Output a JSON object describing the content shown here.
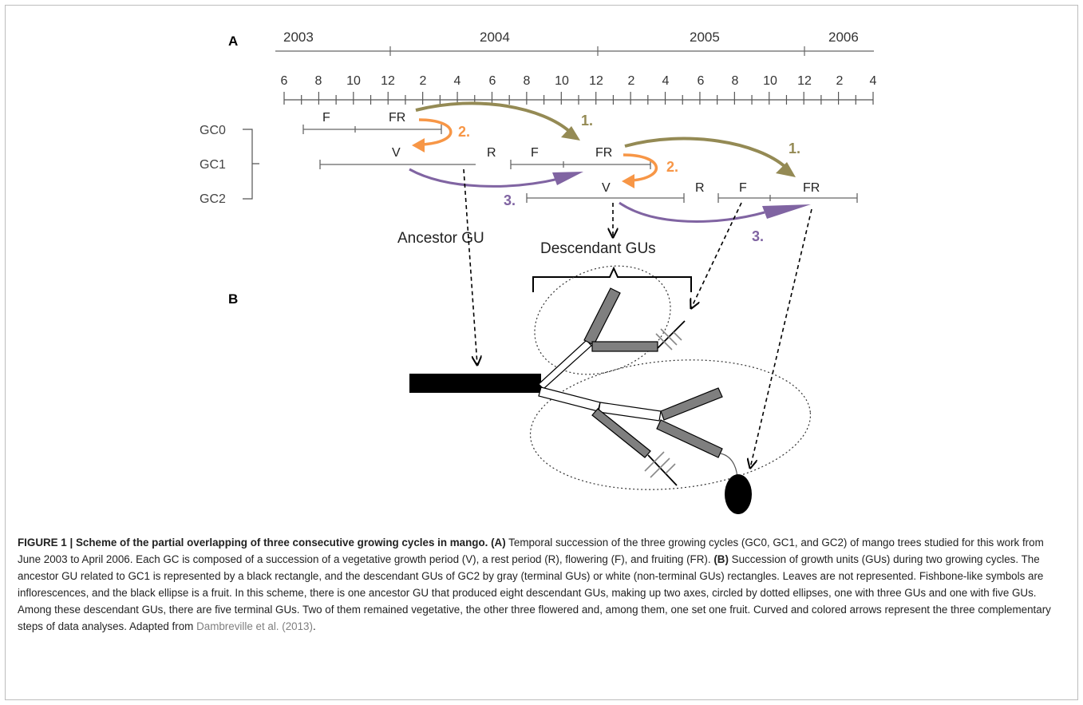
{
  "panels": {
    "a": "A",
    "b": "B"
  },
  "timeline": {
    "years": [
      "2003",
      "2004",
      "2005",
      "2006"
    ],
    "months": [
      "6",
      "8",
      "10",
      "12",
      "2",
      "4",
      "6",
      "8",
      "10",
      "12",
      "2",
      "4",
      "6",
      "8",
      "10",
      "12",
      "2",
      "4"
    ]
  },
  "cycles": [
    "GC0",
    "GC1",
    "GC2"
  ],
  "phases": {
    "gc0_f": "F",
    "gc0_fr": "FR",
    "gc1_v": "V",
    "gc1_r": "R",
    "gc1_f": "F",
    "gc1_fr": "FR",
    "gc2_v": "V",
    "gc2_r": "R",
    "gc2_f": "F",
    "gc2_fr": "FR"
  },
  "steps": {
    "one": "1.",
    "two": "2.",
    "three": "3."
  },
  "labels": {
    "ancestor": "Ancestor GU",
    "descendant": "Descendant GUs"
  },
  "colors": {
    "step1": "#948a54",
    "step2": "#f79646",
    "step3": "#8064a2",
    "white_gu": "#ffffff",
    "gray_gu": "#7f7f7f",
    "ancestor_gu": "#000000"
  },
  "caption": {
    "heading": "FIGURE 1 | Scheme of the partial overlapping of three consecutive growing cycles in mango.",
    "a_tag": "(A)",
    "a_text": "Temporal succession of the three growing cycles (GC0, GC1, and GC2) of mango trees studied for this work from June 2003 to April 2006. Each GC is composed of a succession of a vegetative growth period (V), a rest period (R), flowering (F), and fruiting (FR).",
    "b_tag": "(B)",
    "b_text": "Succession of growth units (GUs) during two growing cycles. The ancestor GU related to GC1 is represented by a black rectangle, and the descendant GUs of GC2 by gray (terminal GUs) or white (non-terminal GUs) rectangles. Leaves are not represented. Fishbone-like symbols are inflorescences, and the black ellipse is a fruit. In this scheme, there is one ancestor GU that produced eight descendant GUs, making up two axes, circled by dotted ellipses, one with three GUs and one with five GUs. Among these descendant GUs, there are five terminal GUs. Two of them remained vegetative, the other three flowered and, among them, one set one fruit. Curved and colored arrows represent the three complementary steps of data analyses. Adapted from",
    "citation": "Dambreville et al. (2013)",
    "end": "."
  }
}
